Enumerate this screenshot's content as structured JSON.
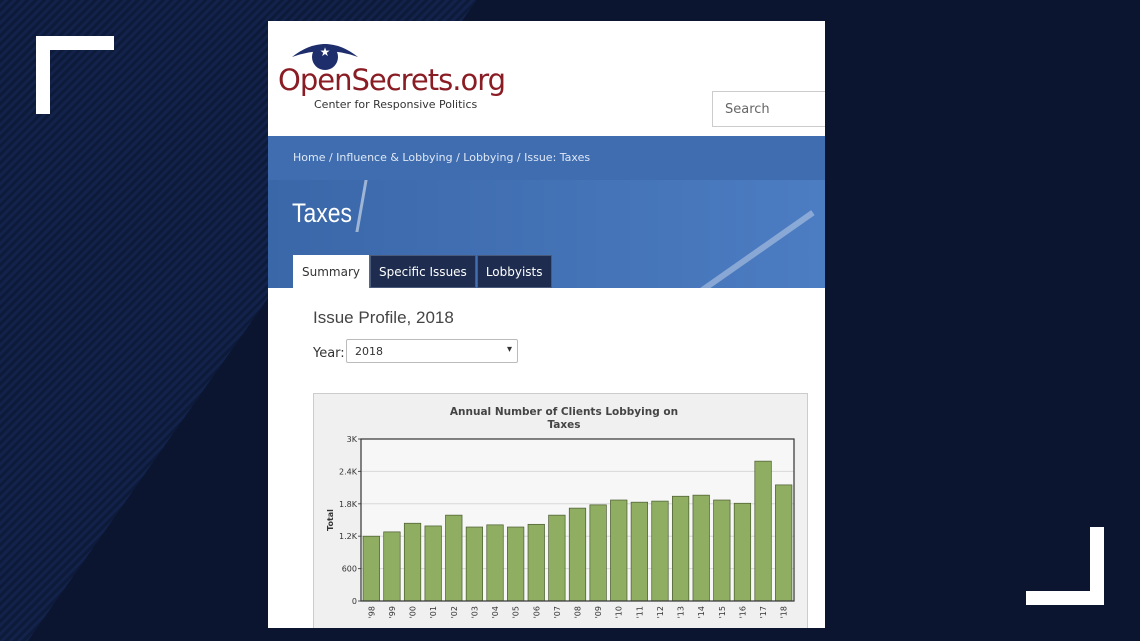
{
  "header": {
    "logo_title": "OpenSecrets.org",
    "logo_subtitle": "Center for Responsive Politics",
    "search_placeholder": "Search"
  },
  "breadcrumb": "Home / Influence & Lobbying / Lobbying / Issue: Taxes",
  "page_title": "Taxes",
  "tabs": [
    "Summary",
    "Specific Issues",
    "Lobbyists"
  ],
  "section_title": "Issue Profile, 2018",
  "year_label": "Year:",
  "year_selected": "2018",
  "chart_data": {
    "type": "bar",
    "title": "Annual Number of Clients Lobbying on Taxes",
    "y_label": "Total",
    "categories": [
      "'98",
      "'99",
      "'00",
      "'01",
      "'02",
      "'03",
      "'04",
      "'05",
      "'06",
      "'07",
      "'08",
      "'09",
      "'10",
      "'11",
      "'12",
      "'13",
      "'14",
      "'15",
      "'16",
      "'17",
      "'18"
    ],
    "values": [
      1200,
      1280,
      1440,
      1390,
      1590,
      1370,
      1410,
      1370,
      1420,
      1590,
      1720,
      1780,
      1870,
      1830,
      1850,
      1940,
      1960,
      1870,
      1810,
      2590,
      2150
    ],
    "color": "#8fae62",
    "ylim": [
      0,
      3000
    ],
    "yticks": [
      0,
      600,
      {
        "value": 1200,
        "label": "1.2K"
      },
      {
        "value": 1800,
        "label": "1.8K"
      },
      {
        "value": 2400,
        "label": "2.4K"
      },
      {
        "value": 3000,
        "label": "3K"
      }
    ],
    "grid": true
  }
}
